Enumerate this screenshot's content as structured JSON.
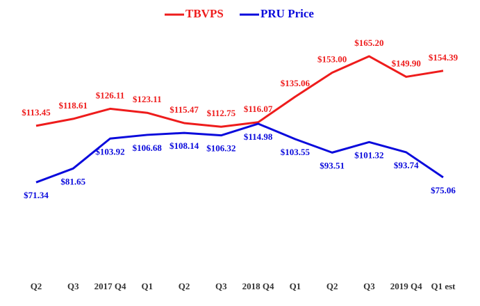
{
  "chart_data": {
    "type": "line",
    "categories": [
      "Q2",
      "Q3",
      "2017 Q4",
      "Q1",
      "Q2",
      "Q3",
      "2018 Q4",
      "Q1",
      "Q2",
      "Q3",
      "2019 Q4",
      "Q1 est"
    ],
    "series": [
      {
        "name": "TBVPS",
        "color": "#ee1c1c",
        "values": [
          113.45,
          118.61,
          126.11,
          123.11,
          115.47,
          112.75,
          116.07,
          135.06,
          153.0,
          165.2,
          149.9,
          154.39
        ],
        "value_labels": [
          "$113.45",
          "$118.61",
          "$126.11",
          "$123.11",
          "$115.47",
          "$112.75",
          "$116.07",
          "$135.06",
          "$153.00",
          "$165.20",
          "$149.90",
          "$154.39"
        ]
      },
      {
        "name": "PRU Price",
        "color": "#0a0adc",
        "values": [
          71.34,
          81.65,
          103.92,
          106.68,
          108.14,
          106.32,
          114.98,
          103.55,
          93.51,
          101.32,
          93.74,
          75.06
        ],
        "value_labels": [
          "$71.34",
          "$81.65",
          "$103.92",
          "$106.68",
          "$108.14",
          "$106.32",
          "$114.98",
          "$103.55",
          "$93.51",
          "$101.32",
          "$93.74",
          "$75.06"
        ]
      }
    ],
    "ylim": [
      0,
      190
    ],
    "legend": "top"
  }
}
